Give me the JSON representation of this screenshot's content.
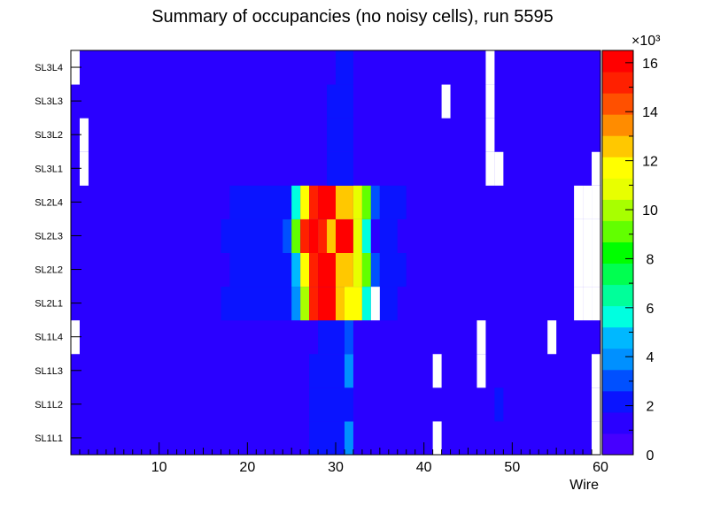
{
  "chart_data": {
    "type": "heatmap",
    "title": "Summary of occupancies (no noisy cells), run 5595",
    "xlabel": "Wire",
    "x_range": [
      0,
      60
    ],
    "x_ticks": [
      "10",
      "20",
      "30",
      "40",
      "50",
      "60"
    ],
    "y_categories": [
      "SL1L1",
      "SL1L2",
      "SL1L3",
      "SL1L4",
      "SL2L1",
      "SL2L2",
      "SL2L3",
      "SL2L4",
      "SL3L1",
      "SL3L2",
      "SL3L3",
      "SL3L4"
    ],
    "z_range": [
      0,
      16500
    ],
    "z_multiplier_label": "×10³",
    "z_ticks": [
      "0",
      "2",
      "4",
      "6",
      "8",
      "10",
      "12",
      "14",
      "16"
    ],
    "baseline_value": 1000,
    "rows": [
      {
        "layer": "SL1L1",
        "cells": [
          {
            "wires": [
              28,
              31
            ],
            "value": 2000
          },
          {
            "wires": [
              32,
              32
            ],
            "value": 4000
          }
        ],
        "empty_wires": [
          42,
          60
        ]
      },
      {
        "layer": "SL1L2",
        "cells": [
          {
            "wires": [
              28,
              32
            ],
            "value": 2000
          },
          {
            "wires": [
              49,
              49
            ],
            "value": 2000
          }
        ],
        "empty_wires": [
          60
        ]
      },
      {
        "layer": "SL1L3",
        "cells": [
          {
            "wires": [
              28,
              31
            ],
            "value": 2000
          },
          {
            "wires": [
              32,
              32
            ],
            "value": 4000
          }
        ],
        "empty_wires": [
          42,
          47,
          60
        ]
      },
      {
        "layer": "SL1L4",
        "cells": [
          {
            "wires": [
              29,
              31
            ],
            "value": 2000
          },
          {
            "wires": [
              32,
              32
            ],
            "value": 3000
          }
        ],
        "empty_wires": [
          1,
          47,
          55
        ]
      },
      {
        "layer": "SL2L1",
        "cells": [
          {
            "wires": [
              18,
              25
            ],
            "value": 2000
          },
          {
            "wires": [
              26,
              26
            ],
            "value": 4000
          },
          {
            "wires": [
              27,
              27
            ],
            "value": 10000
          },
          {
            "wires": [
              28,
              28
            ],
            "value": 15000
          },
          {
            "wires": [
              29,
              30
            ],
            "value": 16500
          },
          {
            "wires": [
              31,
              31
            ],
            "value": 13000
          },
          {
            "wires": [
              32,
              33
            ],
            "value": 12000
          },
          {
            "wires": [
              34,
              34
            ],
            "value": 6000
          },
          {
            "wires": [
              36,
              37
            ],
            "value": 2000
          }
        ],
        "empty_wires": [
          35,
          58,
          59,
          60
        ]
      },
      {
        "layer": "SL2L2",
        "cells": [
          {
            "wires": [
              19,
              25
            ],
            "value": 2000
          },
          {
            "wires": [
              26,
              26
            ],
            "value": 5000
          },
          {
            "wires": [
              27,
              27
            ],
            "value": 12000
          },
          {
            "wires": [
              28,
              28
            ],
            "value": 15000
          },
          {
            "wires": [
              29,
              30
            ],
            "value": 16500
          },
          {
            "wires": [
              31,
              32
            ],
            "value": 13000
          },
          {
            "wires": [
              33,
              33
            ],
            "value": 11000
          },
          {
            "wires": [
              34,
              34
            ],
            "value": 9000
          },
          {
            "wires": [
              35,
              35
            ],
            "value": 3000
          },
          {
            "wires": [
              36,
              38
            ],
            "value": 2000
          }
        ],
        "empty_wires": [
          58,
          59,
          60
        ]
      },
      {
        "layer": "SL2L3",
        "cells": [
          {
            "wires": [
              18,
              24
            ],
            "value": 2000
          },
          {
            "wires": [
              25,
              25
            ],
            "value": 3000
          },
          {
            "wires": [
              26,
              26
            ],
            "value": 9000
          },
          {
            "wires": [
              27,
              27
            ],
            "value": 15000
          },
          {
            "wires": [
              28,
              28
            ],
            "value": 16500
          },
          {
            "wires": [
              29,
              29
            ],
            "value": 15000
          },
          {
            "wires": [
              30,
              30
            ],
            "value": 13000
          },
          {
            "wires": [
              31,
              32
            ],
            "value": 16500
          },
          {
            "wires": [
              33,
              33
            ],
            "value": 11000
          },
          {
            "wires": [
              34,
              34
            ],
            "value": 6000
          },
          {
            "wires": [
              35,
              35
            ],
            "value": 1500
          },
          {
            "wires": [
              36,
              37
            ],
            "value": 2000
          }
        ],
        "empty_wires": [
          58,
          59,
          60
        ]
      },
      {
        "layer": "SL2L4",
        "cells": [
          {
            "wires": [
              19,
              25
            ],
            "value": 2000
          },
          {
            "wires": [
              26,
              26
            ],
            "value": 6000
          },
          {
            "wires": [
              27,
              27
            ],
            "value": 12000
          },
          {
            "wires": [
              28,
              28
            ],
            "value": 15000
          },
          {
            "wires": [
              29,
              30
            ],
            "value": 16500
          },
          {
            "wires": [
              31,
              32
            ],
            "value": 13000
          },
          {
            "wires": [
              33,
              33
            ],
            "value": 11000
          },
          {
            "wires": [
              34,
              34
            ],
            "value": 9000
          },
          {
            "wires": [
              35,
              35
            ],
            "value": 3000
          },
          {
            "wires": [
              36,
              38
            ],
            "value": 2000
          }
        ],
        "empty_wires": [
          58,
          59,
          60
        ]
      },
      {
        "layer": "SL3L1",
        "cells": [
          {
            "wires": [
              30,
              32
            ],
            "value": 2000
          }
        ],
        "empty_wires": [
          2,
          48,
          49,
          60
        ]
      },
      {
        "layer": "SL3L2",
        "cells": [
          {
            "wires": [
              30,
              32
            ],
            "value": 2000
          }
        ],
        "empty_wires": [
          2,
          48
        ]
      },
      {
        "layer": "SL3L3",
        "cells": [
          {
            "wires": [
              30,
              32
            ],
            "value": 2000
          }
        ],
        "empty_wires": [
          43,
          48
        ]
      },
      {
        "layer": "SL3L4",
        "cells": [
          {
            "wires": [
              31,
              32
            ],
            "value": 2000
          }
        ],
        "empty_wires": [
          1,
          48
        ]
      }
    ]
  }
}
